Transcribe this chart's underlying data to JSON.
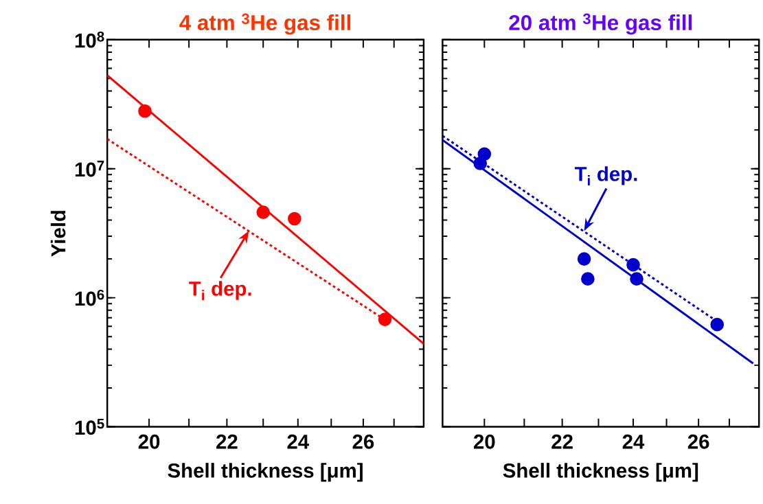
{
  "chart_data": [
    {
      "type": "scatter",
      "title": "4 atm $^{3}$He gas fill",
      "xlabel": "Shell thickness [μm]",
      "ylabel": "Yield",
      "log": "xy",
      "xlim": [
        19,
        28
      ],
      "ylim": [
        100000.0,
        100000000.0
      ],
      "xticks": [
        20,
        {
          "value": 21,
          "label": null
        },
        22,
        {
          "value": 23,
          "label": null
        },
        24,
        {
          "value": 25,
          "label": null
        },
        26,
        {
          "value": 27,
          "label": null
        }
      ],
      "yticks": [
        {
          "value": 100000.0,
          "label": "10$^{5}$"
        },
        {
          "value": 1000000.0,
          "label": "10$^{6}$"
        },
        {
          "value": 10000000.0,
          "label": "10$^{7}$"
        },
        {
          "value": 100000000.0,
          "label": "10$^{8}$"
        }
      ],
      "annotations": [
        {
          "text": "T$_{i}$ dep.",
          "x": 22.6,
          "y": 3300000.0
        }
      ],
      "series": [
        {
          "color": "#ff0000",
          "x": [
            19.9,
            23.0,
            23.9,
            26.7
          ],
          "values": [
            28000000.0,
            4600000.0,
            4100000.0,
            680000.0
          ]
        },
        {
          "type": "line",
          "color": "#ff0000",
          "line_style": "solid",
          "x": [
            19,
            28
          ],
          "values": [
            53000000.0,
            440000.0
          ]
        },
        {
          "type": "line",
          "color": "#ff0000",
          "line_style": "dotted",
          "x": [
            19,
            26.6
          ],
          "values": [
            17000000.0,
            700000.0
          ]
        }
      ]
    },
    {
      "type": "scatter",
      "title": "20 atm $^{3}$He gas fill",
      "xlabel": "Shell thickness [μm]",
      "log": "xy",
      "tick_labels": "x",
      "xlim": [
        19,
        28
      ],
      "ylim": [
        100000.0,
        100000000.0
      ],
      "xticks": [
        20,
        {
          "value": 21,
          "label": null
        },
        22,
        {
          "value": 23,
          "label": null
        },
        24,
        {
          "value": 25,
          "label": null
        },
        26,
        {
          "value": 27,
          "label": null
        }
      ],
      "yticks": [
        {
          "value": 100000.0,
          "label": null
        },
        {
          "value": 1000000.0,
          "label": null
        },
        {
          "value": 10000000.0,
          "label": null
        },
        {
          "value": 100000000.0,
          "label": null
        }
      ],
      "annotations": [
        {
          "text": "T$_{i}$ dep.",
          "x": 22.6,
          "y": 3300000.0
        }
      ],
      "series": [
        {
          "color": "#0000cc",
          "x": [
            19.9,
            20.0,
            22.6,
            22.7,
            24.0,
            24.1,
            26.6
          ],
          "values": [
            11000000.0,
            13000000.0,
            2000000.0,
            1400000.0,
            1800000.0,
            1400000.0,
            620000.0
          ]
        },
        {
          "type": "line",
          "color": "#0000cc",
          "line_style": "solid",
          "x": [
            19,
            27.8
          ],
          "values": [
            16700000.0,
            310000.0
          ]
        },
        {
          "type": "line",
          "color": "#0000cc",
          "line_style": "dotted",
          "x": [
            19,
            26.5
          ],
          "values": [
            18000000.0,
            680000.0
          ]
        }
      ]
    }
  ]
}
